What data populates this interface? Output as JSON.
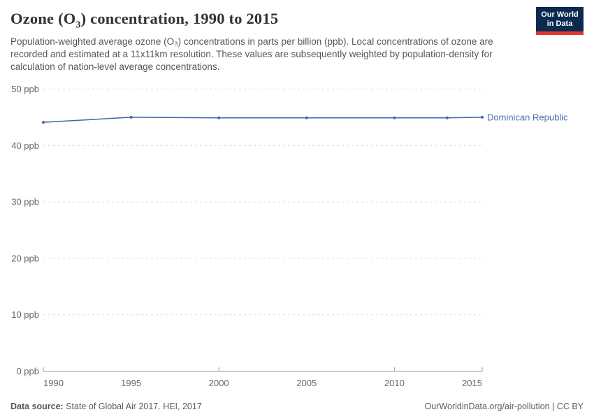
{
  "header": {
    "title_pre": "Ozone (O",
    "title_sub": "3",
    "title_post": ") concentration, 1990 to 2015",
    "subtitle": "Population-weighted average ozone (O₃) concentrations in parts per billion (ppb). Local concentrations of ozone are recorded and estimated at a 11x11km resolution. These values are subsequently weighted by population-density for calculation of nation-level average concentrations.",
    "logo": {
      "line1": "Our World",
      "line2": "in Data",
      "bg_color": "#0B2A51",
      "bar_color": "#E0372E"
    }
  },
  "footer": {
    "data_source_label": "Data source:",
    "data_source_value": "State of Global Air 2017. HEI, 2017",
    "license": "OurWorldinData.org/air-pollution | CC BY"
  },
  "chart_data": {
    "type": "line",
    "title": "Ozone (O3) concentration, 1990 to 2015",
    "xlabel": "",
    "ylabel": "",
    "unit": "ppb",
    "xlim": [
      1990,
      2015
    ],
    "ylim": [
      0,
      50
    ],
    "x_ticks": [
      1990,
      1995,
      2000,
      2005,
      2010,
      2015
    ],
    "x_tick_labels": [
      "1990",
      "1995",
      "2000",
      "2005",
      "2010",
      "2015"
    ],
    "x_axis_tick_marks": [
      1990,
      2000,
      2010,
      2015
    ],
    "y_ticks": [
      0,
      10,
      20,
      30,
      40,
      50
    ],
    "y_tick_labels": [
      "0 ppb",
      "10 ppb",
      "20 ppb",
      "30 ppb",
      "40 ppb",
      "50 ppb"
    ],
    "grid": "horizontal-dashed",
    "legend_position": "inline-right-of-line",
    "series": [
      {
        "name": "Dominican Republic",
        "x": [
          1990,
          1995,
          2000,
          2005,
          2010,
          2013,
          2015
        ],
        "values": [
          44.1,
          45.0,
          44.9,
          44.9,
          44.9,
          44.9,
          45.0
        ]
      }
    ],
    "colors": {
      "series": "#3F66A6",
      "series_label": "#4C70B0",
      "grid": "#DCDCDC",
      "axis": "#9A9A9A",
      "tick_label": "#666666"
    }
  }
}
